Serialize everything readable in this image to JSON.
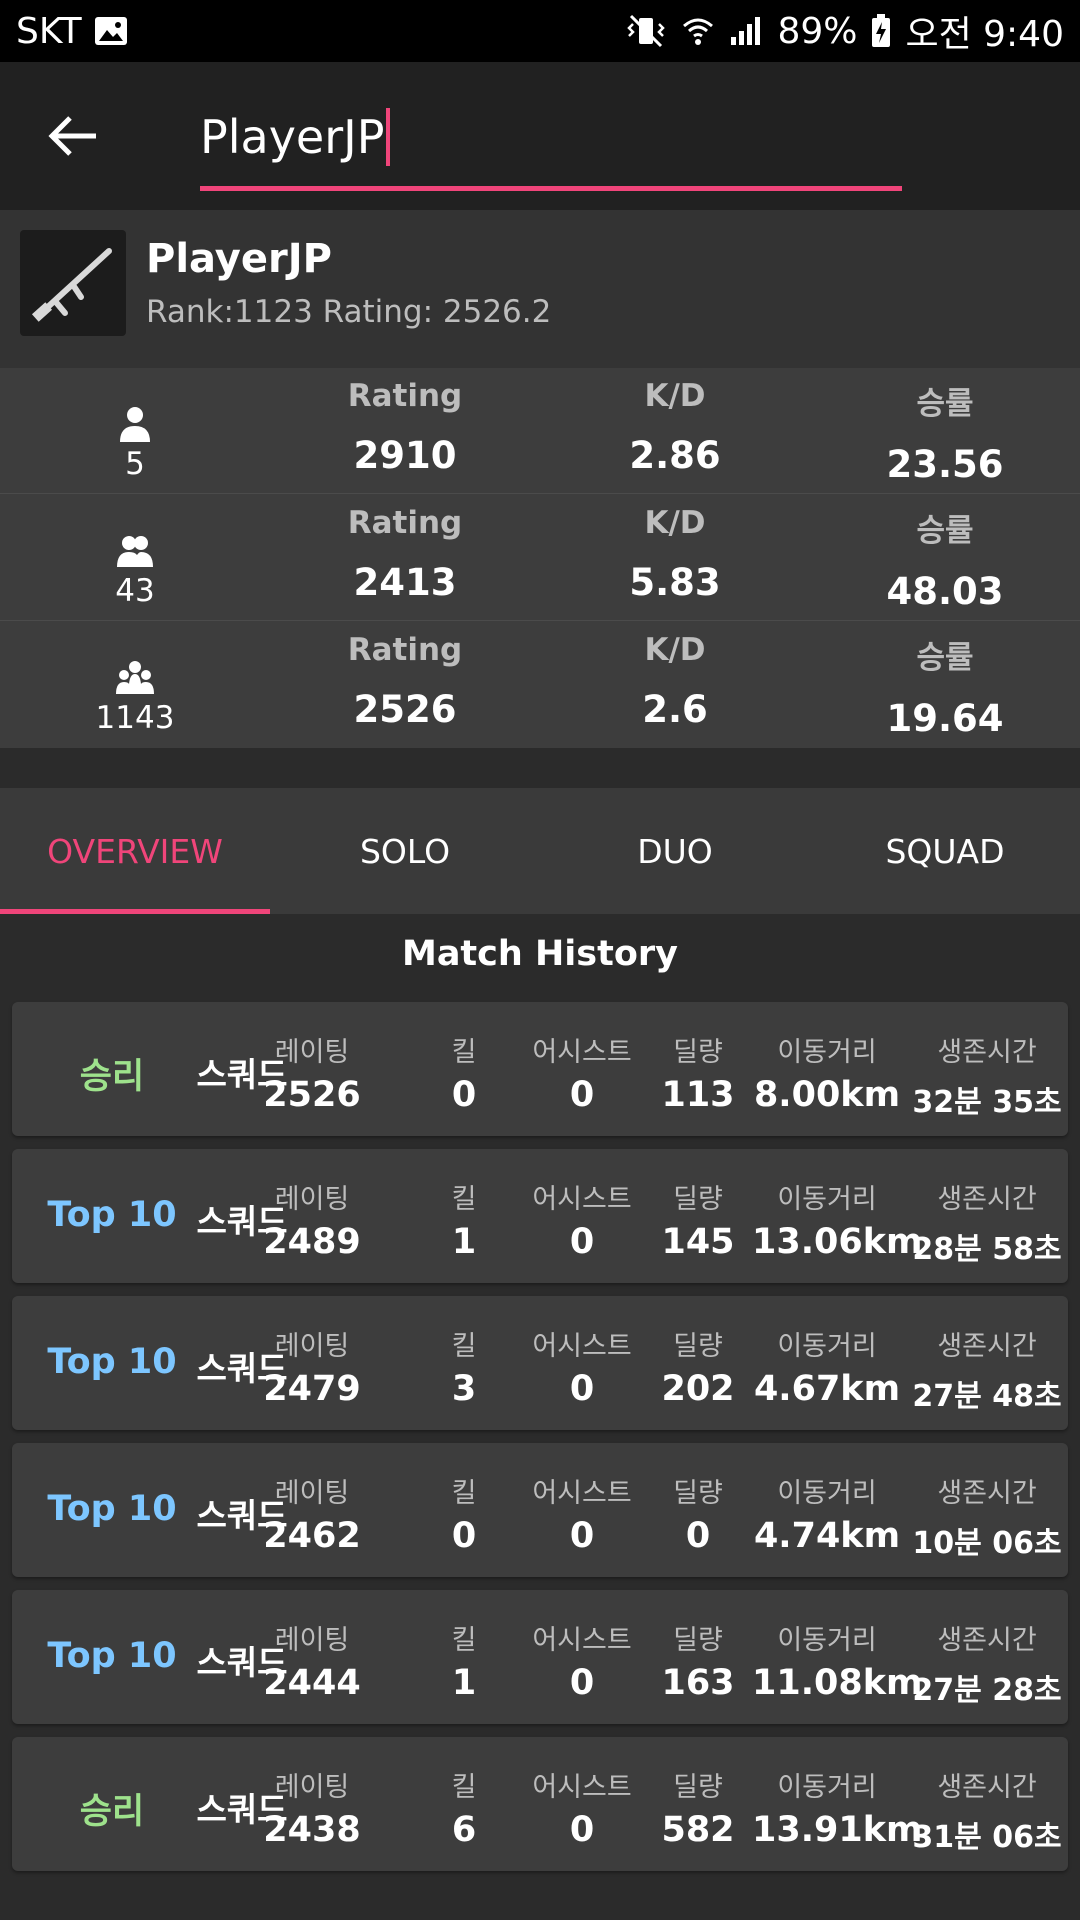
{
  "status_bar": {
    "carrier": "SKT",
    "battery": "89%",
    "time": "오전 9:40"
  },
  "search": {
    "value": "PlayerJP"
  },
  "profile": {
    "name": "PlayerJP",
    "subtitle": "Rank:1123  Rating: 2526.2"
  },
  "stats": [
    {
      "mode_icon": "person-icon",
      "count": "5",
      "rating_label": "Rating",
      "rating": "2910",
      "kd_label": "K/D",
      "kd": "2.86",
      "win_label": "승률",
      "win": "23.56"
    },
    {
      "mode_icon": "two-people-icon",
      "count": "43",
      "rating_label": "Rating",
      "rating": "2413",
      "kd_label": "K/D",
      "kd": "5.83",
      "win_label": "승률",
      "win": "48.03"
    },
    {
      "mode_icon": "group-icon",
      "count": "1143",
      "rating_label": "Rating",
      "rating": "2526",
      "kd_label": "K/D",
      "kd": "2.6",
      "win_label": "승률",
      "win": "19.64"
    }
  ],
  "tabs": [
    {
      "label": "OVERVIEW",
      "active": true
    },
    {
      "label": "SOLO",
      "active": false
    },
    {
      "label": "DUO",
      "active": false
    },
    {
      "label": "SQUAD",
      "active": false
    }
  ],
  "history": {
    "title": "Match History",
    "labels": {
      "rating": "레이팅",
      "kills": "킬",
      "assists": "어시스트",
      "damage": "딜량",
      "distance": "이동거리",
      "survival": "생존시간"
    },
    "matches": [
      {
        "result": "승리",
        "result_type": "win",
        "mode": "스쿼드",
        "rating": "2526",
        "kills": "0",
        "assists": "0",
        "damage": "113",
        "distance": "8.00km",
        "survival": "32분 35초"
      },
      {
        "result": "Top 10",
        "result_type": "top",
        "mode": "스쿼드",
        "rating": "2489",
        "kills": "1",
        "assists": "0",
        "damage": "145",
        "distance": "13.06km",
        "survival": "28분 58초"
      },
      {
        "result": "Top 10",
        "result_type": "top",
        "mode": "스쿼드",
        "rating": "2479",
        "kills": "3",
        "assists": "0",
        "damage": "202",
        "distance": "4.67km",
        "survival": "27분 48초"
      },
      {
        "result": "Top 10",
        "result_type": "top",
        "mode": "스쿼드",
        "rating": "2462",
        "kills": "0",
        "assists": "0",
        "damage": "0",
        "distance": "4.74km",
        "survival": "10분 06초"
      },
      {
        "result": "Top 10",
        "result_type": "top",
        "mode": "스쿼드",
        "rating": "2444",
        "kills": "1",
        "assists": "0",
        "damage": "163",
        "distance": "11.08km",
        "survival": "27분 28초"
      },
      {
        "result": "승리",
        "result_type": "win",
        "mode": "스쿼드",
        "rating": "2438",
        "kills": "6",
        "assists": "0",
        "damage": "582",
        "distance": "13.91km",
        "survival": "31분 06초"
      }
    ]
  },
  "colors": {
    "accent": "#f0457a",
    "win": "#9ee28c",
    "top10": "#7dc6ff"
  }
}
